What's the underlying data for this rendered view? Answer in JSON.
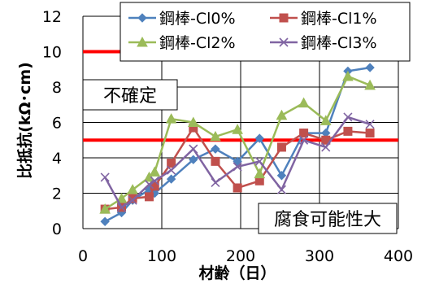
{
  "chart_data": {
    "type": "line",
    "title": "",
    "xlabel": "材齢（日）",
    "ylabel": "比抵抗(kΩ･cm)",
    "xlim": [
      0,
      400
    ],
    "ylim": [
      0,
      12
    ],
    "x_ticks": [
      0,
      100,
      200,
      300,
      400
    ],
    "y_ticks": [
      0,
      2,
      4,
      6,
      8,
      10,
      12
    ],
    "grid": true,
    "legend_position": "top",
    "series": [
      {
        "name": "鋼棒-Cl0%",
        "color": "#4F81BD",
        "marker": "diamond",
        "x": [
          28,
          49,
          63,
          84,
          91,
          112,
          140,
          168,
          196,
          224,
          252,
          280,
          308,
          336,
          364
        ],
        "y": [
          0.4,
          0.9,
          1.6,
          2.2,
          2.0,
          2.8,
          3.9,
          4.5,
          3.8,
          5.1,
          3.0,
          5.4,
          5.4,
          8.9,
          9.1
        ]
      },
      {
        "name": "鋼棒-Cl1%",
        "color": "#C0504D",
        "marker": "square",
        "x": [
          28,
          49,
          63,
          84,
          91,
          112,
          140,
          168,
          196,
          224,
          252,
          280,
          308,
          336,
          364
        ],
        "y": [
          1.1,
          1.2,
          1.7,
          1.8,
          2.4,
          3.7,
          5.7,
          3.8,
          2.3,
          2.7,
          4.6,
          5.4,
          5.0,
          5.5,
          5.4
        ]
      },
      {
        "name": "鋼棒-Cl2%",
        "color": "#9BBB59",
        "marker": "triangle",
        "x": [
          28,
          49,
          63,
          84,
          91,
          112,
          140,
          168,
          196,
          224,
          252,
          280,
          308,
          336,
          364
        ],
        "y": [
          1.1,
          1.7,
          2.2,
          2.9,
          3.2,
          6.2,
          6.0,
          5.2,
          5.6,
          3.1,
          6.4,
          7.1,
          6.1,
          8.6,
          8.1
        ]
      },
      {
        "name": "鋼棒-Cl3%",
        "color": "#8064A2",
        "marker": "x",
        "x": [
          28,
          49,
          63,
          84,
          91,
          112,
          140,
          168,
          196,
          224,
          252,
          280,
          308,
          336,
          364
        ],
        "y": [
          2.9,
          1.2,
          1.6,
          2.5,
          2.7,
          3.3,
          4.5,
          2.6,
          3.5,
          3.8,
          2.2,
          5.0,
          4.6,
          6.3,
          5.9
        ]
      }
    ],
    "reference_lines": [
      {
        "y": 10,
        "color": "#FF0000"
      },
      {
        "y": 5,
        "color": "#FF0000"
      }
    ],
    "annotations": [
      {
        "text": "不確定"
      },
      {
        "text": "腐食可能性大"
      }
    ]
  }
}
